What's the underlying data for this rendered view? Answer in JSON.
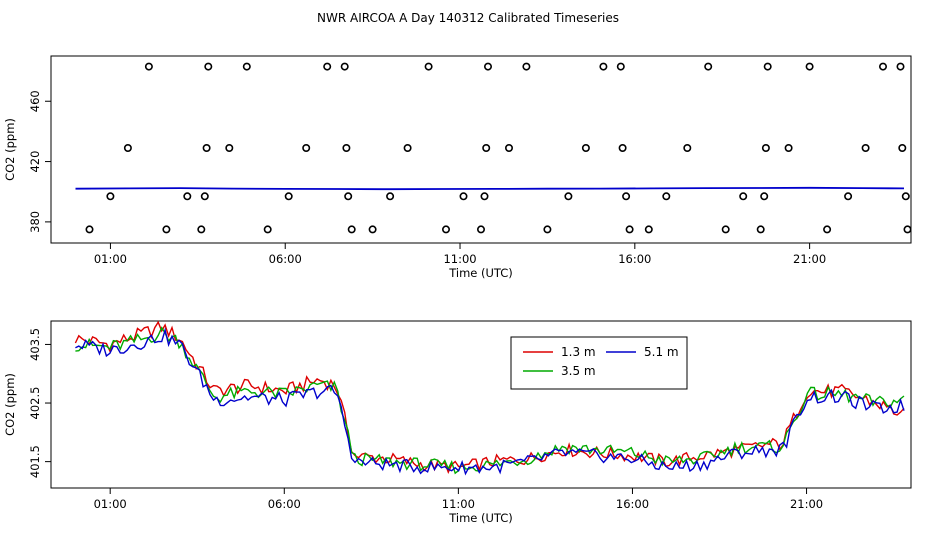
{
  "chart_data": [
    {
      "type": "scatter",
      "title": "NWR AIRCOA A  Day 140312  Calibrated Timeseries",
      "xlabel": "Time (UTC)",
      "ylabel": "CO2 (ppm)",
      "xlim": [
        -0.7,
        23.9
      ],
      "ylim": [
        366,
        490
      ],
      "x_ticks": [
        1,
        6,
        11,
        16,
        21
      ],
      "x_tick_labels": [
        "01:00",
        "06:00",
        "11:00",
        "16:00",
        "21:00"
      ],
      "y_ticks": [
        380,
        420,
        460
      ],
      "y_tick_labels": [
        "380",
        "420",
        "460"
      ],
      "grid": false,
      "reference_line": {
        "description": "measured CO2 near 402 ppm",
        "values": [
          402.0,
          402.2,
          402.4,
          402.1,
          401.9,
          401.8,
          401.7,
          401.8,
          401.9,
          402.0,
          402.1,
          402.2,
          402.4,
          402.5,
          402.6,
          402.4,
          402.2
        ]
      },
      "reference_x": [
        0,
        1.5,
        3,
        4.5,
        6,
        7.5,
        9,
        10.5,
        12,
        13.5,
        15,
        16.5,
        18,
        19.5,
        21,
        22.5,
        23.7
      ],
      "series": [
        {
          "marker": "open-circle",
          "points": [
            [
              0.4,
              375
            ],
            [
              1.5,
              429
            ],
            [
              1.0,
              397
            ],
            [
              2.1,
              483
            ],
            [
              2.6,
              375
            ],
            [
              3.2,
              397
            ],
            [
              3.6,
              375
            ],
            [
              3.75,
              429
            ],
            [
              3.7,
              397
            ],
            [
              3.8,
              483
            ],
            [
              4.4,
              429
            ],
            [
              4.9,
              483
            ],
            [
              5.5,
              375
            ],
            [
              6.1,
              397
            ],
            [
              6.6,
              429
            ],
            [
              7.2,
              483
            ],
            [
              7.7,
              483
            ],
            [
              7.75,
              429
            ],
            [
              7.8,
              397
            ],
            [
              7.9,
              375
            ],
            [
              8.5,
              375
            ],
            [
              9.0,
              397
            ],
            [
              9.5,
              429
            ],
            [
              10.1,
              483
            ],
            [
              10.6,
              375
            ],
            [
              11.1,
              397
            ],
            [
              11.6,
              375
            ],
            [
              11.7,
              397
            ],
            [
              11.75,
              429
            ],
            [
              11.8,
              483
            ],
            [
              12.4,
              429
            ],
            [
              12.9,
              483
            ],
            [
              13.5,
              375
            ],
            [
              14.1,
              397
            ],
            [
              14.6,
              429
            ],
            [
              15.1,
              483
            ],
            [
              15.6,
              483
            ],
            [
              15.65,
              429
            ],
            [
              15.75,
              397
            ],
            [
              15.85,
              375
            ],
            [
              16.4,
              375
            ],
            [
              16.9,
              397
            ],
            [
              17.5,
              429
            ],
            [
              18.1,
              483
            ],
            [
              18.6,
              375
            ],
            [
              19.1,
              397
            ],
            [
              19.6,
              375
            ],
            [
              19.7,
              397
            ],
            [
              19.75,
              429
            ],
            [
              19.8,
              483
            ],
            [
              20.4,
              429
            ],
            [
              21.0,
              483
            ],
            [
              21.5,
              375
            ],
            [
              22.1,
              397
            ],
            [
              22.6,
              429
            ],
            [
              23.1,
              483
            ],
            [
              23.6,
              483
            ],
            [
              23.65,
              429
            ],
            [
              23.75,
              397
            ],
            [
              23.8,
              375
            ]
          ]
        }
      ]
    },
    {
      "type": "line",
      "xlabel": "Time (UTC)",
      "ylabel": "CO2 (ppm)",
      "xlim": [
        -0.7,
        24.0
      ],
      "ylim": [
        401.05,
        403.9
      ],
      "x_ticks": [
        1,
        6,
        11,
        16,
        21
      ],
      "x_tick_labels": [
        "01:00",
        "06:00",
        "11:00",
        "16:00",
        "21:00"
      ],
      "y_ticks": [
        401.5,
        402.5,
        403.5
      ],
      "y_tick_labels": [
        "401.5",
        "402.5",
        "403.5"
      ],
      "grid": false,
      "legend": "top-center",
      "legend_entries": [
        "1.3 m",
        "3.5 m",
        "5.1 m"
      ],
      "x": [
        0,
        1,
        2,
        2.5,
        3,
        4,
        5,
        6,
        7,
        7.5,
        8,
        9,
        10,
        11,
        12,
        13,
        14,
        15,
        16,
        17,
        18,
        19,
        20,
        20.3,
        21,
        22,
        23,
        23.8
      ],
      "series": [
        {
          "name": "1.3 m",
          "color": "#dd0000",
          "values": [
            403.6,
            403.5,
            403.7,
            403.8,
            403.6,
            402.7,
            402.8,
            402.7,
            402.9,
            402.8,
            401.6,
            401.55,
            401.45,
            401.4,
            401.5,
            401.55,
            401.7,
            401.65,
            401.6,
            401.5,
            401.6,
            401.7,
            401.8,
            401.8,
            402.7,
            402.7,
            402.5,
            402.3
          ]
        },
        {
          "name": "3.5 m",
          "color": "#00aa00",
          "values": [
            403.5,
            403.45,
            403.6,
            403.7,
            403.55,
            402.6,
            402.7,
            402.65,
            402.8,
            402.75,
            401.55,
            401.5,
            401.45,
            401.4,
            401.45,
            401.55,
            401.75,
            401.7,
            401.65,
            401.5,
            401.55,
            401.75,
            401.75,
            401.75,
            402.65,
            402.65,
            402.5,
            402.55
          ]
        },
        {
          "name": "5.1 m",
          "color": "#0000cc",
          "values": [
            403.5,
            403.4,
            403.55,
            403.65,
            403.5,
            402.55,
            402.6,
            402.55,
            402.7,
            402.7,
            401.5,
            401.45,
            401.4,
            401.4,
            401.4,
            401.5,
            401.65,
            401.6,
            401.55,
            401.4,
            401.45,
            401.65,
            401.7,
            401.7,
            402.6,
            402.6,
            402.4,
            402.45
          ]
        }
      ]
    }
  ]
}
